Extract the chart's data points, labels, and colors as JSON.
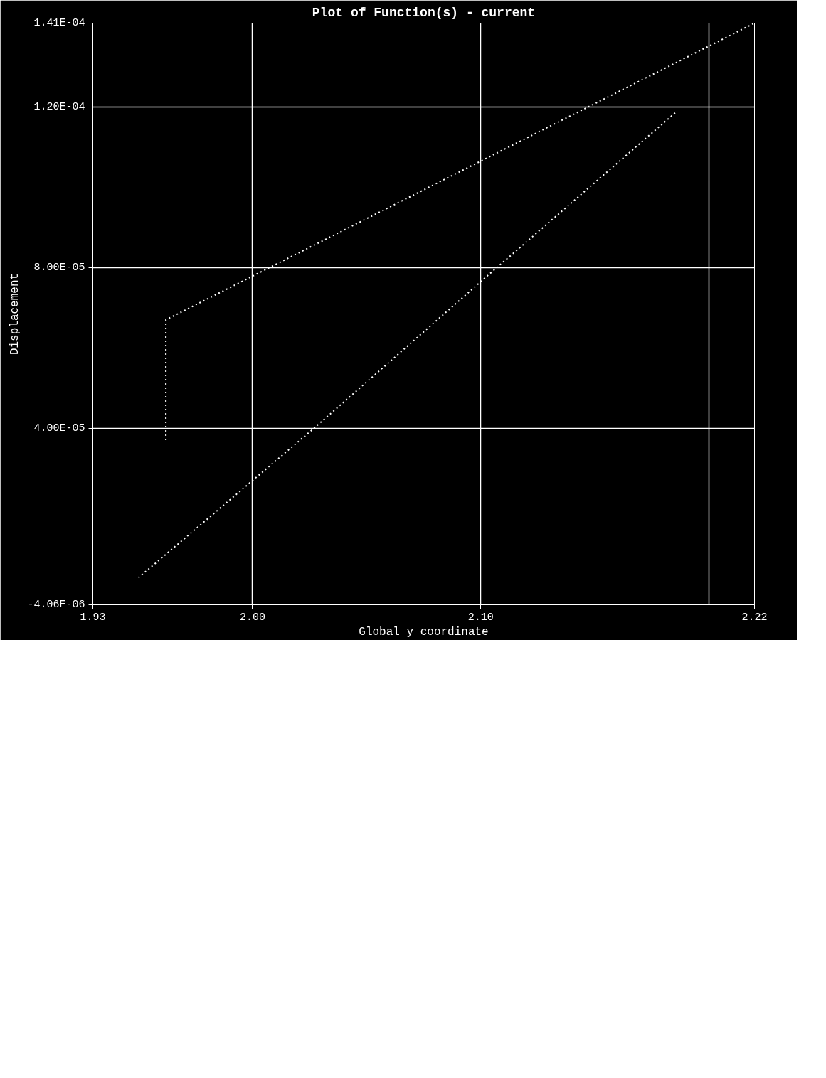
{
  "chart_data": {
    "type": "line",
    "title": "Plot of Function(s) - current",
    "xlabel": "Global y coordinate",
    "ylabel": "Displacement",
    "xlim": [
      1.93,
      2.22
    ],
    "ylim": [
      -4.06e-06,
      0.000141
    ],
    "xticks": [
      {
        "value": 1.93,
        "label": "1.93"
      },
      {
        "value": 2.0,
        "label": "2.00"
      },
      {
        "value": 2.1,
        "label": "2.10"
      },
      {
        "value": 2.2,
        "label": null
      },
      {
        "value": 2.22,
        "label": "2.22"
      }
    ],
    "yticks": [
      {
        "value": -4.06e-06,
        "label": "-4.06E-06"
      },
      {
        "value": 4e-05,
        "label": "4.00E-05"
      },
      {
        "value": 8e-05,
        "label": "8.00E-05"
      },
      {
        "value": 0.00012,
        "label": "1.20E-04"
      },
      {
        "value": 0.000141,
        "label": "1.41E-04"
      }
    ],
    "grid": true,
    "line_style": "dotted",
    "series": [
      {
        "color": "#ffffff",
        "x": [
          1.962,
          1.962,
          2.22
        ],
        "values": [
          3.7e-05,
          6.7e-05,
          0.000141
        ]
      },
      {
        "color": "#ffffff",
        "x": [
          1.95,
          2.027,
          2.107,
          2.186
        ],
        "values": [
          2.7e-06,
          4e-05,
          8e-05,
          0.000119
        ]
      }
    ]
  }
}
